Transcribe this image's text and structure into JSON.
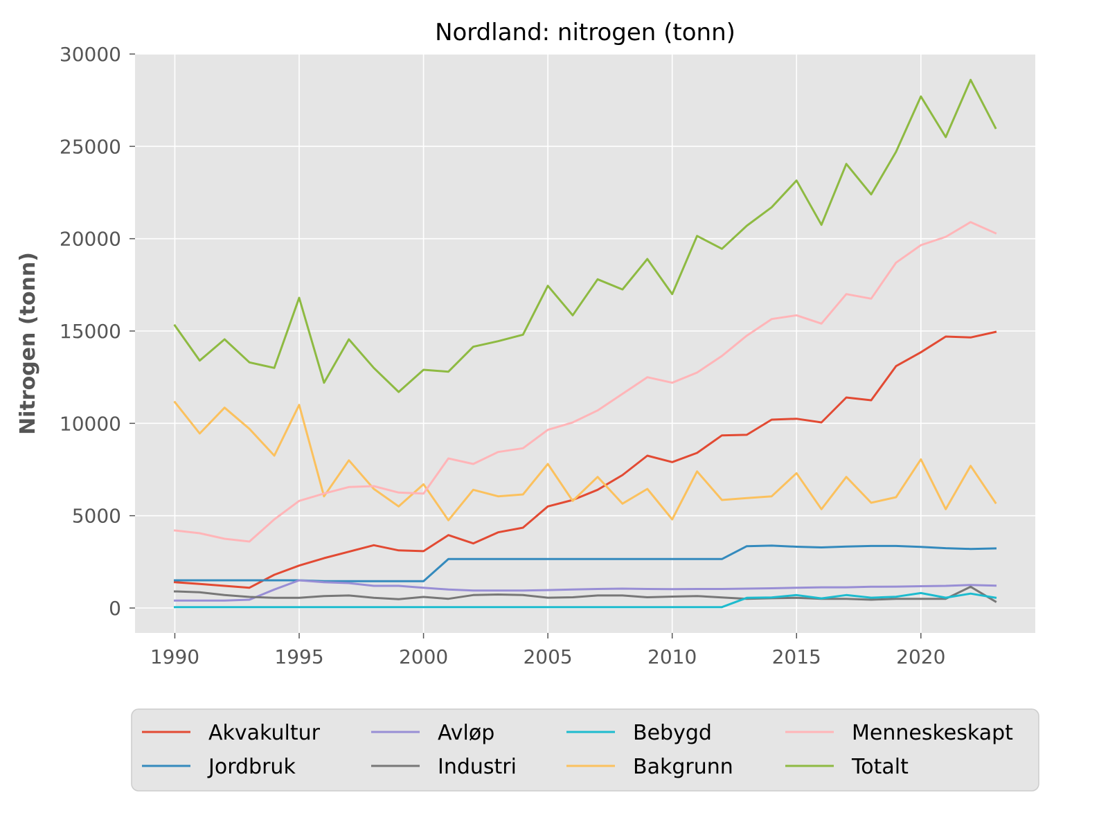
{
  "chart_data": {
    "type": "line",
    "title": "Nordland: nitrogen (tonn)",
    "xlabel": "",
    "ylabel": "Nitrogen (tonn)",
    "xlim": [
      1988.4,
      2024.6
    ],
    "ylim": [
      -1350,
      30000
    ],
    "x_ticks": [
      1990,
      1995,
      2000,
      2005,
      2010,
      2015,
      2020
    ],
    "y_ticks": [
      0,
      5000,
      10000,
      15000,
      20000,
      25000,
      30000
    ],
    "grid": true,
    "legend_position": "bottom",
    "x": [
      1990,
      1991,
      1992,
      1993,
      1994,
      1995,
      1996,
      1997,
      1998,
      1999,
      2000,
      2001,
      2002,
      2003,
      2004,
      2005,
      2006,
      2007,
      2008,
      2009,
      2010,
      2011,
      2012,
      2013,
      2014,
      2015,
      2016,
      2017,
      2018,
      2019,
      2020,
      2021,
      2022,
      2023
    ],
    "series": [
      {
        "name": "Akvakultur",
        "color": "#E24A33",
        "values": [
          1400,
          1300,
          1200,
          1100,
          1800,
          2300,
          2700,
          3050,
          3400,
          3120,
          3080,
          3950,
          3500,
          4100,
          4350,
          5500,
          5850,
          6400,
          7200,
          8250,
          7900,
          8400,
          9350,
          9380,
          10200,
          10250,
          10050,
          11400,
          11250,
          13100,
          13850,
          14700,
          14650,
          14950
        ]
      },
      {
        "name": "Jordbruk",
        "color": "#348ABD",
        "values": [
          1500,
          1500,
          1500,
          1500,
          1500,
          1500,
          1450,
          1450,
          1450,
          1450,
          1450,
          2650,
          2650,
          2650,
          2650,
          2650,
          2650,
          2650,
          2650,
          2650,
          2650,
          2650,
          2650,
          3350,
          3380,
          3320,
          3280,
          3330,
          3360,
          3360,
          3310,
          3240,
          3200,
          3230
        ]
      },
      {
        "name": "Avløp",
        "color": "#988ED5",
        "values": [
          400,
          400,
          400,
          450,
          1000,
          1500,
          1400,
          1350,
          1200,
          1200,
          1100,
          1000,
          950,
          950,
          950,
          970,
          1000,
          1030,
          1050,
          1030,
          1020,
          1030,
          1030,
          1050,
          1070,
          1100,
          1120,
          1120,
          1150,
          1160,
          1180,
          1200,
          1250,
          1210
        ]
      },
      {
        "name": "Industri",
        "color": "#777777",
        "values": [
          900,
          850,
          700,
          600,
          550,
          550,
          650,
          680,
          550,
          480,
          600,
          500,
          700,
          730,
          700,
          560,
          580,
          680,
          680,
          580,
          620,
          650,
          570,
          500,
          530,
          550,
          500,
          500,
          450,
          500,
          500,
          500,
          1150,
          350
        ]
      },
      {
        "name": "Bebygd",
        "color": "#1DBBCE",
        "values": [
          50,
          50,
          50,
          50,
          50,
          50,
          50,
          50,
          50,
          50,
          50,
          50,
          50,
          50,
          50,
          50,
          50,
          50,
          50,
          50,
          50,
          50,
          50,
          550,
          570,
          700,
          520,
          700,
          560,
          610,
          810,
          560,
          780,
          560
        ]
      },
      {
        "name": "Bakgrunn",
        "color": "#FBC15E",
        "values": [
          11150,
          9450,
          10850,
          9700,
          8250,
          11000,
          6050,
          8000,
          6450,
          5500,
          6700,
          4750,
          6400,
          6050,
          6150,
          7800,
          5800,
          7100,
          5650,
          6450,
          4800,
          7400,
          5850,
          5950,
          6050,
          7300,
          5350,
          7100,
          5700,
          6000,
          8050,
          5350,
          7700,
          5700
        ]
      },
      {
        "name": "Menneskeskapt",
        "color": "#FFB5B8",
        "values": [
          4200,
          4050,
          3750,
          3600,
          4800,
          5800,
          6200,
          6550,
          6600,
          6250,
          6200,
          8100,
          7800,
          8450,
          8650,
          9650,
          10050,
          10700,
          11600,
          12500,
          12200,
          12750,
          13650,
          14750,
          15650,
          15850,
          15400,
          17000,
          16750,
          18700,
          19650,
          20100,
          20900,
          20300
        ]
      },
      {
        "name": "Totalt",
        "color": "#8EBA42",
        "values": [
          15300,
          13400,
          14550,
          13300,
          13000,
          16800,
          12200,
          14550,
          13000,
          11700,
          12900,
          12800,
          14150,
          14450,
          14800,
          17450,
          15850,
          17800,
          17250,
          18900,
          17000,
          20150,
          19450,
          20700,
          21700,
          23150,
          20750,
          24050,
          22400,
          24700,
          27700,
          25500,
          28600,
          26000
        ]
      }
    ]
  }
}
